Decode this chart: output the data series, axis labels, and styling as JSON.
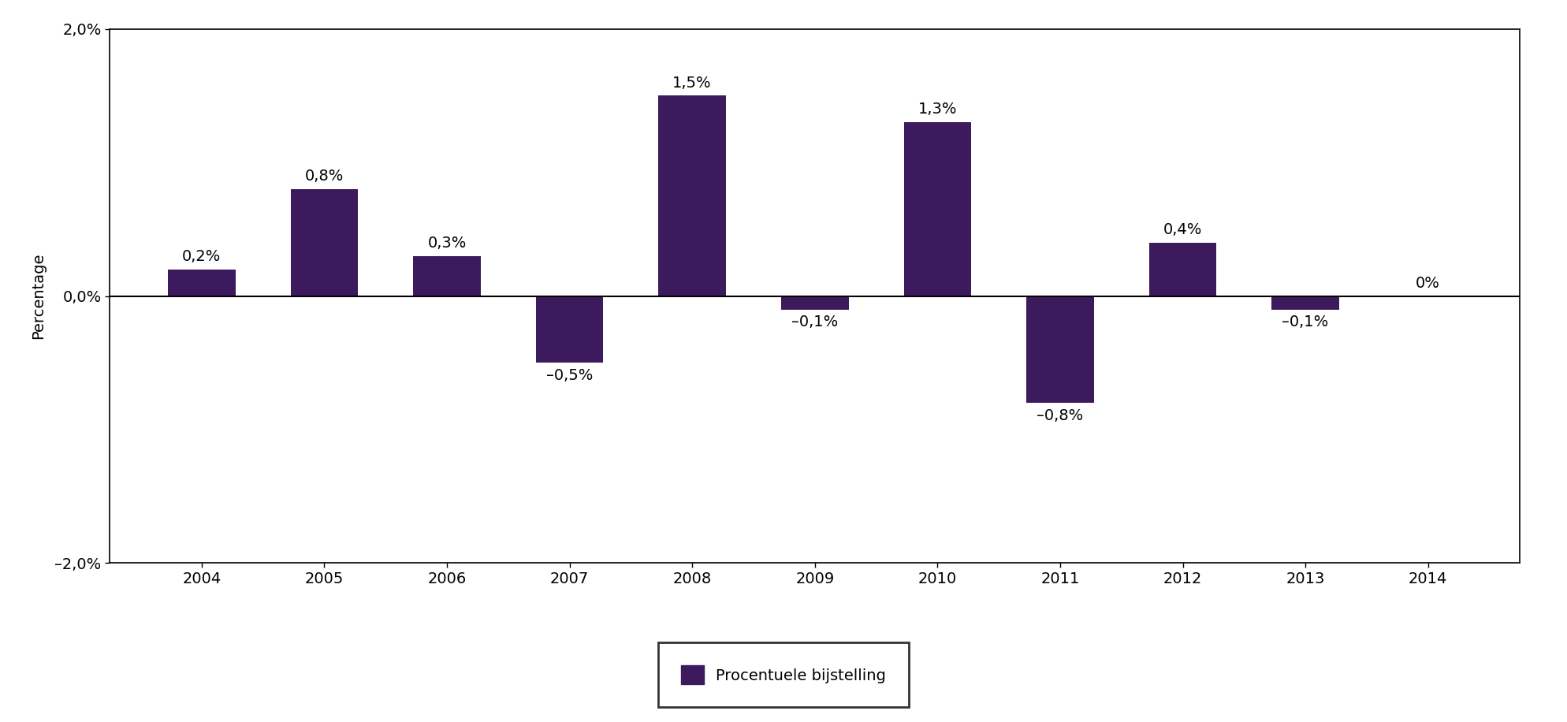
{
  "categories": [
    "2004",
    "2005",
    "2006",
    "2007",
    "2008",
    "2009",
    "2010",
    "2011",
    "2012",
    "2013",
    "2014"
  ],
  "values": [
    0.2,
    0.8,
    0.3,
    -0.5,
    1.5,
    -0.1,
    1.3,
    -0.8,
    0.4,
    -0.1,
    0.0
  ],
  "labels": [
    "0,2%",
    "0,8%",
    "0,3%",
    "–0,5%",
    "1,5%",
    "–0,1%",
    "1,3%",
    "–0,8%",
    "0,4%",
    "–0,1%",
    "0%"
  ],
  "bar_color": "#3d1a5e",
  "background_color": "#ffffff",
  "ylabel": "Percentage",
  "ylim": [
    -2.0,
    2.0
  ],
  "yticks": [
    -2.0,
    0.0,
    2.0
  ],
  "ytick_labels": [
    "–2,0%",
    "0,0%",
    "2,0%"
  ],
  "legend_label": "Procentuele bijstelling",
  "label_fontsize": 14,
  "tick_fontsize": 14,
  "ylabel_fontsize": 14,
  "legend_fontsize": 14,
  "bar_width": 0.55
}
